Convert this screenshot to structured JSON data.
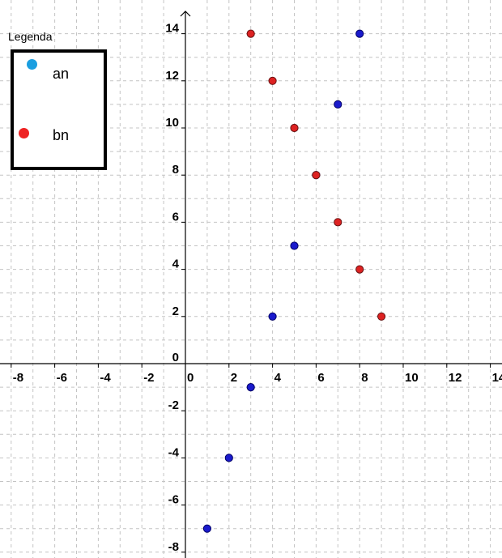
{
  "chart_data": {
    "type": "scatter",
    "title": "",
    "xlabel": "",
    "ylabel": "",
    "xlim": [
      -8.5,
      14.3
    ],
    "ylim": [
      -8.5,
      14.6
    ],
    "grid": true,
    "x_ticks": [
      -8,
      -6,
      -4,
      -2,
      0,
      2,
      4,
      6,
      8,
      10,
      12,
      14
    ],
    "x_tick_labels": [
      "-8",
      "-6",
      "-4",
      "-2",
      "0",
      "2",
      "4",
      "6",
      "8",
      "10",
      "12",
      "14"
    ],
    "y_ticks": [
      -8,
      -6,
      -4,
      -2,
      0,
      2,
      4,
      6,
      8,
      10,
      12,
      14
    ],
    "y_tick_labels": [
      "-8",
      "-6",
      "-4",
      "-2",
      "0",
      "2",
      "4",
      "6",
      "8",
      "10",
      "12",
      "14"
    ],
    "legend": {
      "title": "Legenda",
      "position": "top-left",
      "entries": [
        {
          "label": "an",
          "color": "#1a9ee0"
        },
        {
          "label": "bn",
          "color": "#ee2222"
        }
      ]
    },
    "series": [
      {
        "name": "an",
        "color": "#1a1acc",
        "points": [
          {
            "x": 1,
            "y": -7
          },
          {
            "x": 2,
            "y": -4
          },
          {
            "x": 3,
            "y": -1
          },
          {
            "x": 4,
            "y": 2
          },
          {
            "x": 5,
            "y": 5
          },
          {
            "x": 6,
            "y": 8
          },
          {
            "x": 7,
            "y": 11
          },
          {
            "x": 8,
            "y": 14
          }
        ]
      },
      {
        "name": "bn",
        "color": "#dd2222",
        "points": [
          {
            "x": 3,
            "y": 14
          },
          {
            "x": 4,
            "y": 12
          },
          {
            "x": 5,
            "y": 10
          },
          {
            "x": 6,
            "y": 8
          },
          {
            "x": 7,
            "y": 6
          },
          {
            "x": 8,
            "y": 4
          },
          {
            "x": 9,
            "y": 2
          }
        ]
      }
    ]
  }
}
